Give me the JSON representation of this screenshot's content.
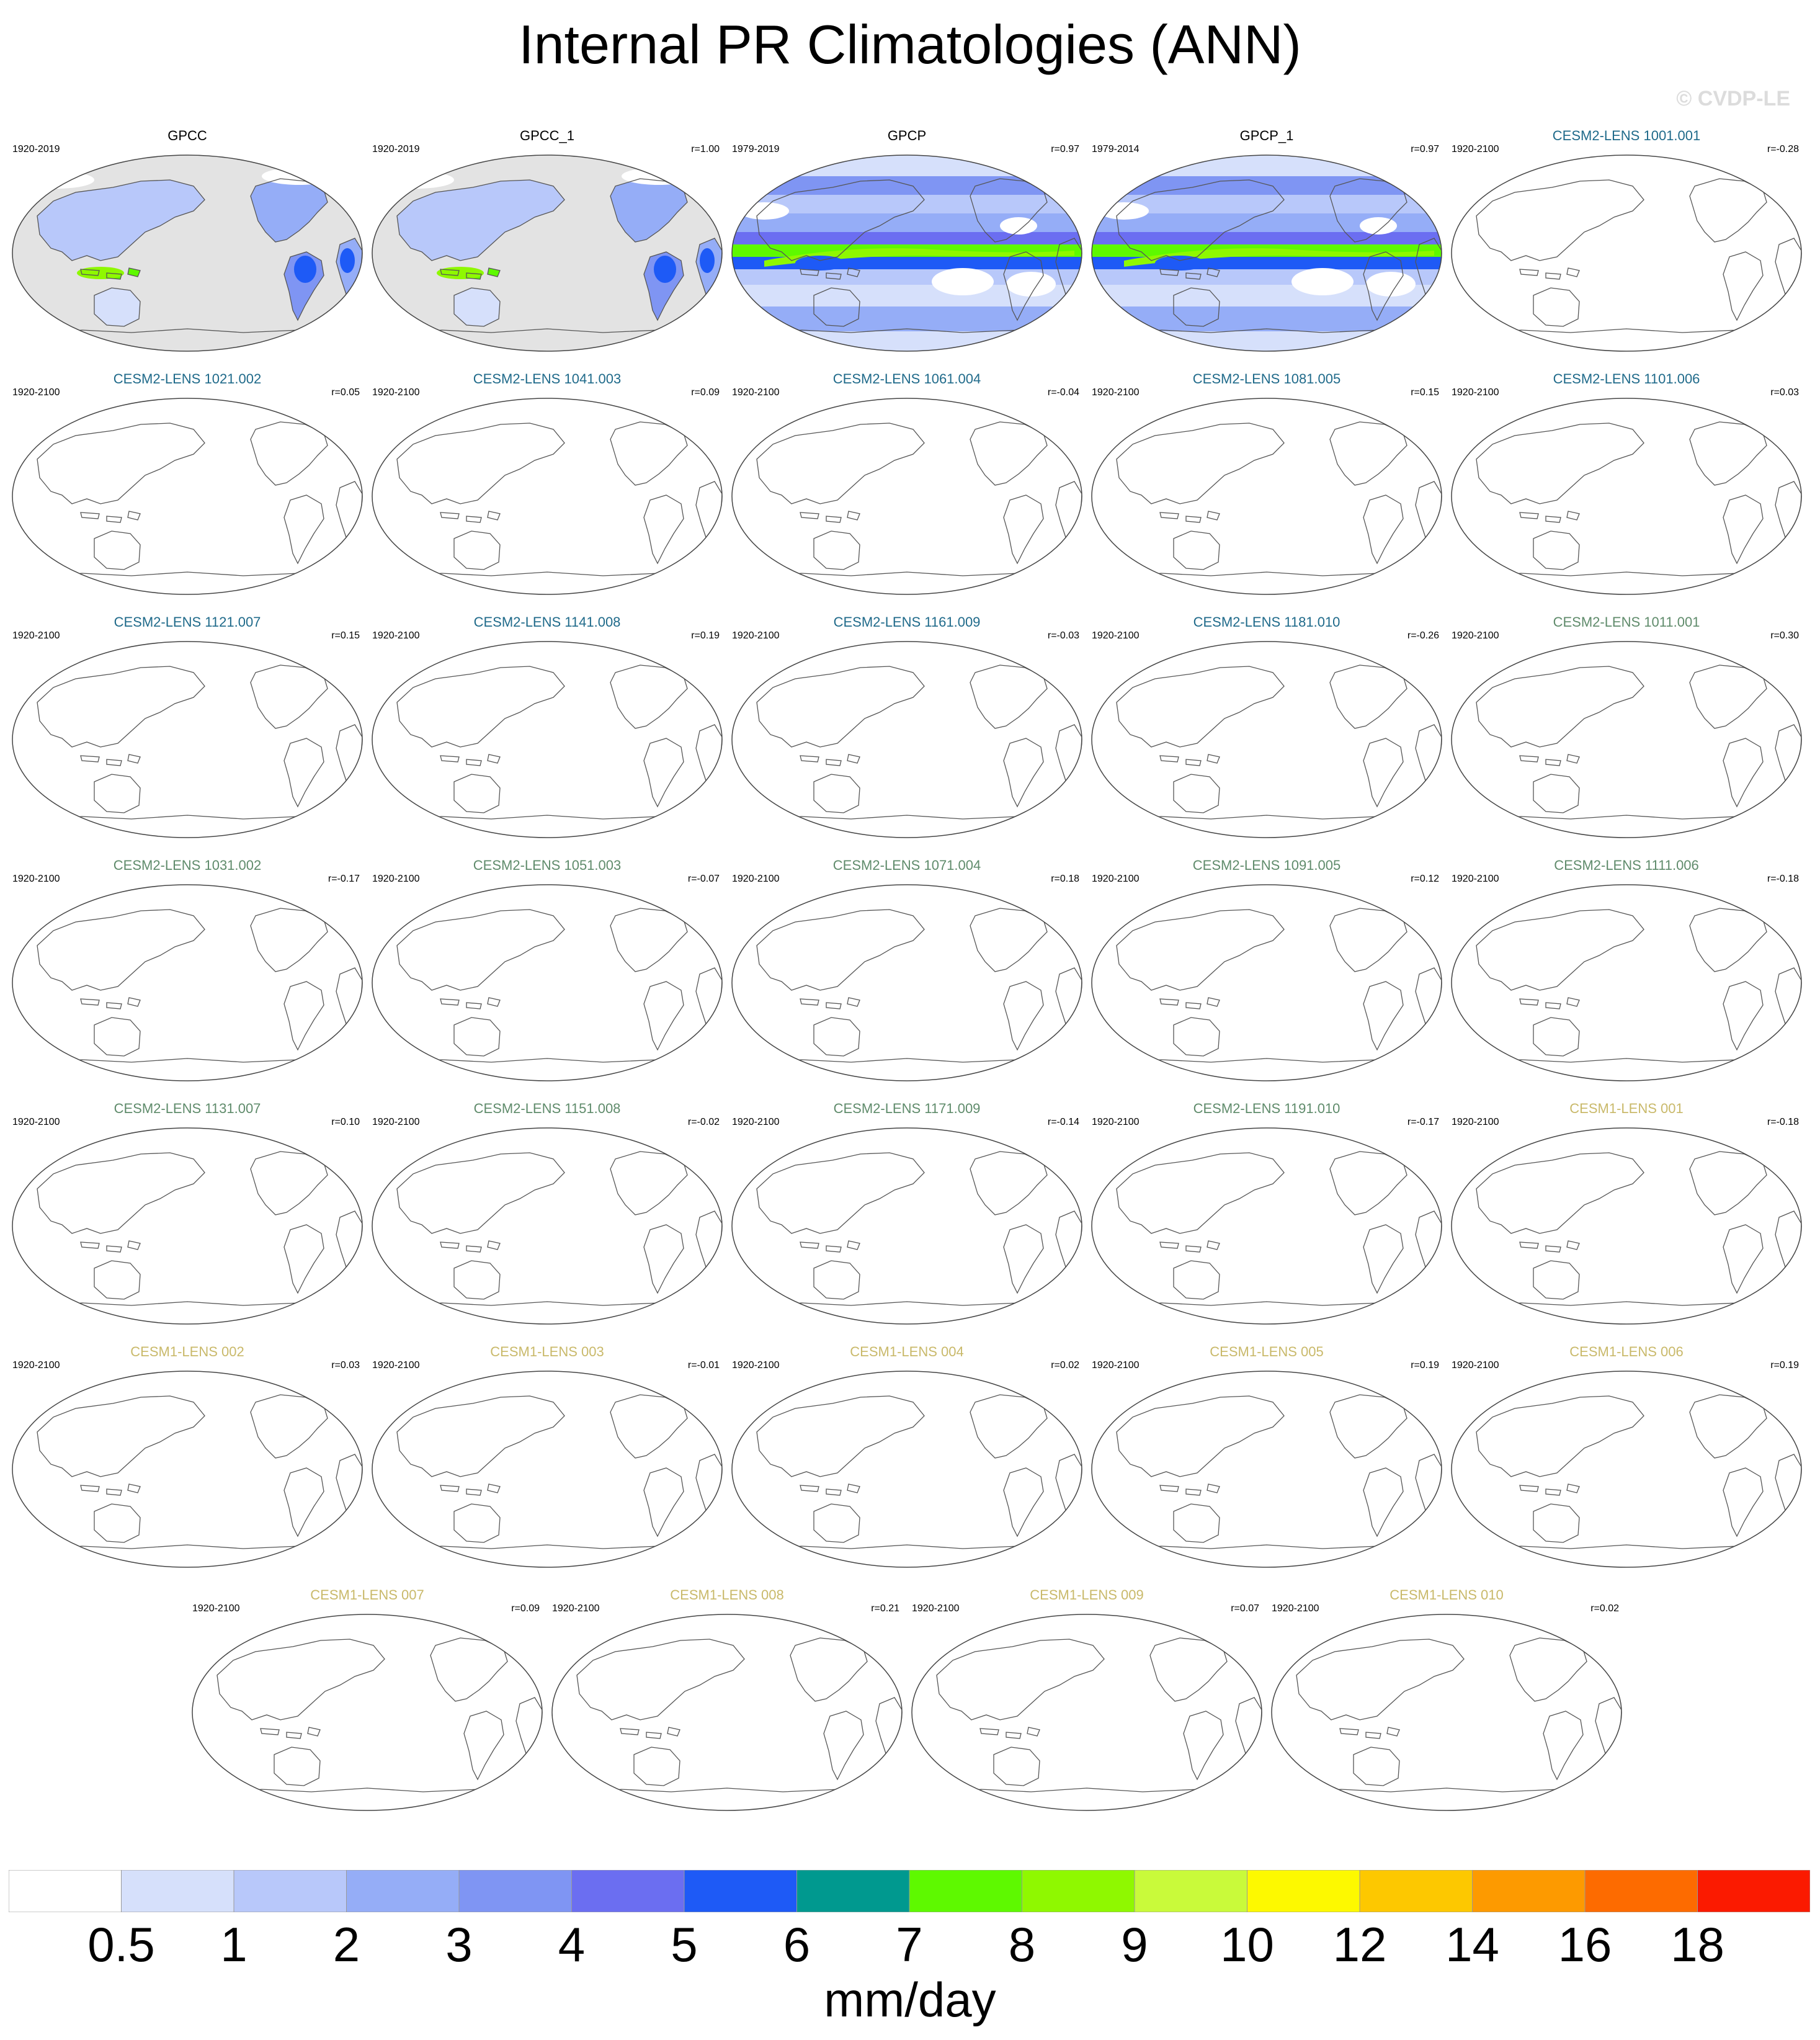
{
  "title": "Internal PR Climatologies (ANN)",
  "watermark": "© CVDP-LE",
  "chart_data": {
    "type": "heatmap",
    "title": "Internal PR Climatologies (ANN)",
    "colorbar": {
      "label": "mm/day",
      "levels": [
        "0.5",
        "1",
        "2",
        "3",
        "4",
        "5",
        "6",
        "7",
        "8",
        "9",
        "10",
        "12",
        "14",
        "16",
        "18"
      ],
      "colors": [
        "#ffffff",
        "#d6e0fb",
        "#b8c8fa",
        "#95adf7",
        "#7f95f3",
        "#6b6ef1",
        "#1e5af6",
        "#00998f",
        "#5ef900",
        "#8ff800",
        "#c9fa3a",
        "#fdf900",
        "#fdc800",
        "#fd9a00",
        "#fd6b00",
        "#fb1a00"
      ]
    },
    "panels": [
      {
        "name": "GPCC",
        "period": "1920-2019",
        "r": "",
        "color": "#000000",
        "field": "gpcc"
      },
      {
        "name": "GPCC_1",
        "period": "1920-2019",
        "r": "r=1.00",
        "color": "#000000",
        "field": "gpcc"
      },
      {
        "name": "GPCP",
        "period": "1979-2019",
        "r": "r=0.97",
        "color": "#000000",
        "field": "gpcp"
      },
      {
        "name": "GPCP_1",
        "period": "1979-2014",
        "r": "r=0.97",
        "color": "#000000",
        "field": "gpcp"
      },
      {
        "name": "CESM2-LENS 1001.001",
        "period": "1920-2100",
        "r": "r=-0.28",
        "color": "#1f6a8a",
        "field": "none"
      },
      {
        "name": "CESM2-LENS 1021.002",
        "period": "1920-2100",
        "r": "r=0.05",
        "color": "#1f6a8a",
        "field": "none"
      },
      {
        "name": "CESM2-LENS 1041.003",
        "period": "1920-2100",
        "r": "r=0.09",
        "color": "#1f6a8a",
        "field": "none"
      },
      {
        "name": "CESM2-LENS 1061.004",
        "period": "1920-2100",
        "r": "r=-0.04",
        "color": "#1f6a8a",
        "field": "none"
      },
      {
        "name": "CESM2-LENS 1081.005",
        "period": "1920-2100",
        "r": "r=0.15",
        "color": "#1f6a8a",
        "field": "none"
      },
      {
        "name": "CESM2-LENS 1101.006",
        "period": "1920-2100",
        "r": "r=0.03",
        "color": "#1f6a8a",
        "field": "none"
      },
      {
        "name": "CESM2-LENS 1121.007",
        "period": "1920-2100",
        "r": "r=0.15",
        "color": "#1f6a8a",
        "field": "none"
      },
      {
        "name": "CESM2-LENS 1141.008",
        "period": "1920-2100",
        "r": "r=0.19",
        "color": "#1f6a8a",
        "field": "none"
      },
      {
        "name": "CESM2-LENS 1161.009",
        "period": "1920-2100",
        "r": "r=-0.03",
        "color": "#1f6a8a",
        "field": "none"
      },
      {
        "name": "CESM2-LENS 1181.010",
        "period": "1920-2100",
        "r": "r=-0.26",
        "color": "#1f6a8a",
        "field": "none"
      },
      {
        "name": "CESM2-LENS 1011.001",
        "period": "1920-2100",
        "r": "r=0.30",
        "color": "#5f8b6b",
        "field": "none"
      },
      {
        "name": "CESM2-LENS 1031.002",
        "period": "1920-2100",
        "r": "r=-0.17",
        "color": "#5f8b6b",
        "field": "none"
      },
      {
        "name": "CESM2-LENS 1051.003",
        "period": "1920-2100",
        "r": "r=-0.07",
        "color": "#5f8b6b",
        "field": "none"
      },
      {
        "name": "CESM2-LENS 1071.004",
        "period": "1920-2100",
        "r": "r=0.18",
        "color": "#5f8b6b",
        "field": "none"
      },
      {
        "name": "CESM2-LENS 1091.005",
        "period": "1920-2100",
        "r": "r=0.12",
        "color": "#5f8b6b",
        "field": "none"
      },
      {
        "name": "CESM2-LENS 1111.006",
        "period": "1920-2100",
        "r": "r=-0.18",
        "color": "#5f8b6b",
        "field": "none"
      },
      {
        "name": "CESM2-LENS 1131.007",
        "period": "1920-2100",
        "r": "r=0.10",
        "color": "#5f8b6b",
        "field": "none"
      },
      {
        "name": "CESM2-LENS 1151.008",
        "period": "1920-2100",
        "r": "r=-0.02",
        "color": "#5f8b6b",
        "field": "none"
      },
      {
        "name": "CESM2-LENS 1171.009",
        "period": "1920-2100",
        "r": "r=-0.14",
        "color": "#5f8b6b",
        "field": "none"
      },
      {
        "name": "CESM2-LENS 1191.010",
        "period": "1920-2100",
        "r": "r=-0.17",
        "color": "#5f8b6b",
        "field": "none"
      },
      {
        "name": "CESM1-LENS 001",
        "period": "1920-2100",
        "r": "r=-0.18",
        "color": "#c9b96a",
        "field": "none"
      },
      {
        "name": "CESM1-LENS 002",
        "period": "1920-2100",
        "r": "r=0.03",
        "color": "#c9b96a",
        "field": "none"
      },
      {
        "name": "CESM1-LENS 003",
        "period": "1920-2100",
        "r": "r=-0.01",
        "color": "#c9b96a",
        "field": "none"
      },
      {
        "name": "CESM1-LENS 004",
        "period": "1920-2100",
        "r": "r=0.02",
        "color": "#c9b96a",
        "field": "none"
      },
      {
        "name": "CESM1-LENS 005",
        "period": "1920-2100",
        "r": "r=0.19",
        "color": "#c9b96a",
        "field": "none"
      },
      {
        "name": "CESM1-LENS 006",
        "period": "1920-2100",
        "r": "r=0.19",
        "color": "#c9b96a",
        "field": "none"
      },
      {
        "name": "CESM1-LENS 007",
        "period": "1920-2100",
        "r": "r=0.09",
        "color": "#c9b96a",
        "field": "none"
      },
      {
        "name": "CESM1-LENS 008",
        "period": "1920-2100",
        "r": "r=0.21",
        "color": "#c9b96a",
        "field": "none"
      },
      {
        "name": "CESM1-LENS 009",
        "period": "1920-2100",
        "r": "r=0.07",
        "color": "#c9b96a",
        "field": "none"
      },
      {
        "name": "CESM1-LENS 010",
        "period": "1920-2100",
        "r": "r=0.02",
        "color": "#c9b96a",
        "field": "none"
      }
    ]
  }
}
